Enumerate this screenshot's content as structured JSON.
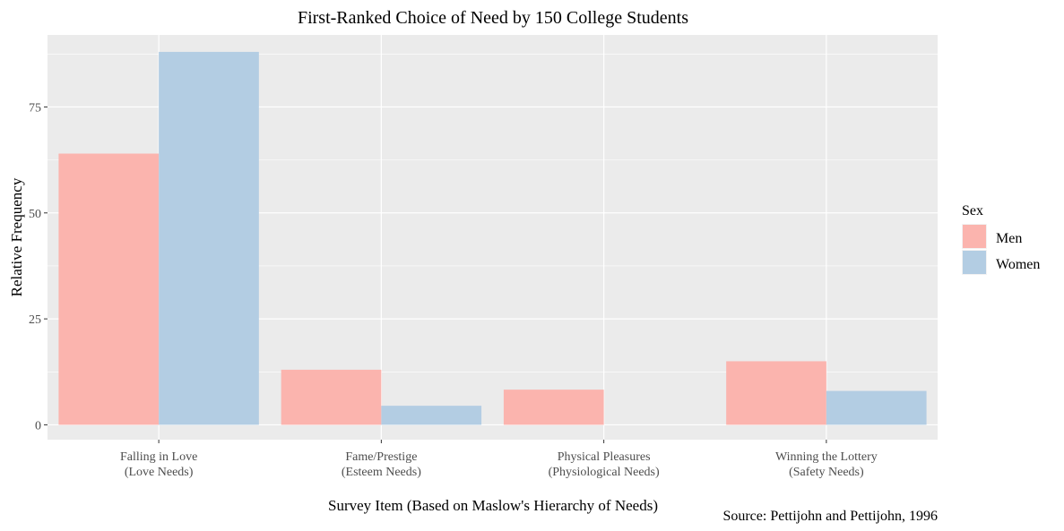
{
  "chart_data": {
    "type": "bar",
    "title": "First-Ranked Choice of Need by 150 College Students",
    "xlabel": "Survey Item (Based on Maslow's Hierarchy of Needs)",
    "ylabel": "Relative Frequency",
    "caption": "Source: Pettijohn and Pettijohn, 1996",
    "categories": [
      [
        "Falling in Love",
        "(Love Needs)"
      ],
      [
        "Fame/Prestige",
        "(Esteem Needs)"
      ],
      [
        "Physical Pleasures",
        "(Physiological Needs)"
      ],
      [
        "Winning the Lottery",
        "(Safety Needs)"
      ]
    ],
    "series": [
      {
        "name": "Men",
        "values": [
          64,
          13,
          8.3,
          15
        ]
      },
      {
        "name": "Women",
        "values": [
          88,
          4.5,
          0,
          8
        ]
      }
    ],
    "ylim": [
      -3.5,
      92
    ],
    "yticks": [
      0,
      25,
      50,
      75
    ],
    "grid": true,
    "legend_title": "Sex",
    "legend_position": "right",
    "colors": {
      "Men": "#FBB4AE",
      "Women": "#B3CDE3",
      "panel_background": "#EBEBEB",
      "grid": "#FFFFFF"
    }
  }
}
